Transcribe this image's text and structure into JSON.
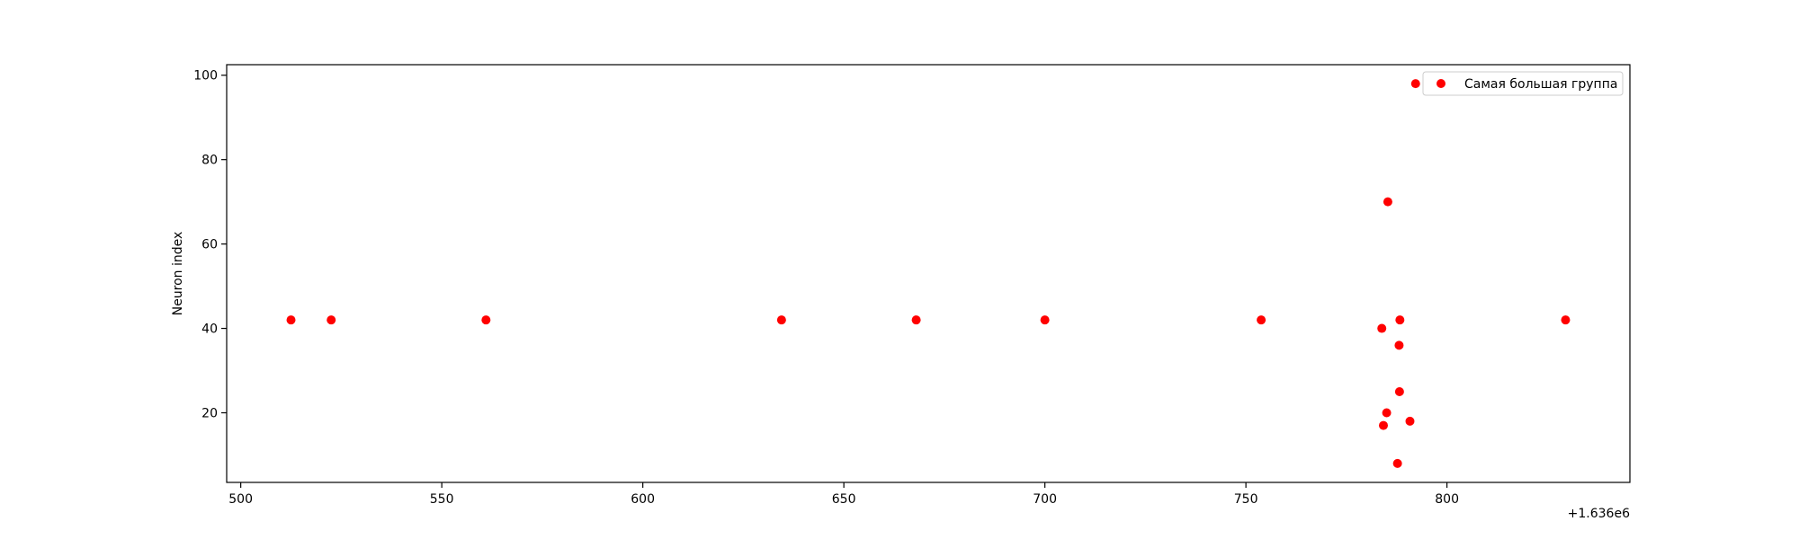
{
  "chart_data": {
    "type": "scatter",
    "title": "",
    "xlabel": "",
    "ylabel": "Neuron index",
    "x_offset_label": "+1.636e6",
    "xlim": [
      496.5,
      845.5
    ],
    "ylim": [
      3.5,
      102.5
    ],
    "xticks": [
      500,
      550,
      600,
      650,
      700,
      750,
      800
    ],
    "yticks": [
      20,
      40,
      60,
      80,
      100
    ],
    "grid": false,
    "legend_position": "top-right",
    "series": [
      {
        "name": "Самая большая группа",
        "color": "#ff0000",
        "x": [
          512.5,
          522.5,
          561,
          634.5,
          668,
          700,
          753.8,
          783.8,
          784.2,
          785,
          785.3,
          787.7,
          788.1,
          788.2,
          788.3,
          790.8,
          792.2,
          829.5
        ],
        "y": [
          42,
          42,
          42,
          42,
          42,
          42,
          42,
          40,
          17,
          20,
          70,
          8,
          36,
          25,
          42,
          18,
          98,
          42
        ]
      }
    ]
  }
}
